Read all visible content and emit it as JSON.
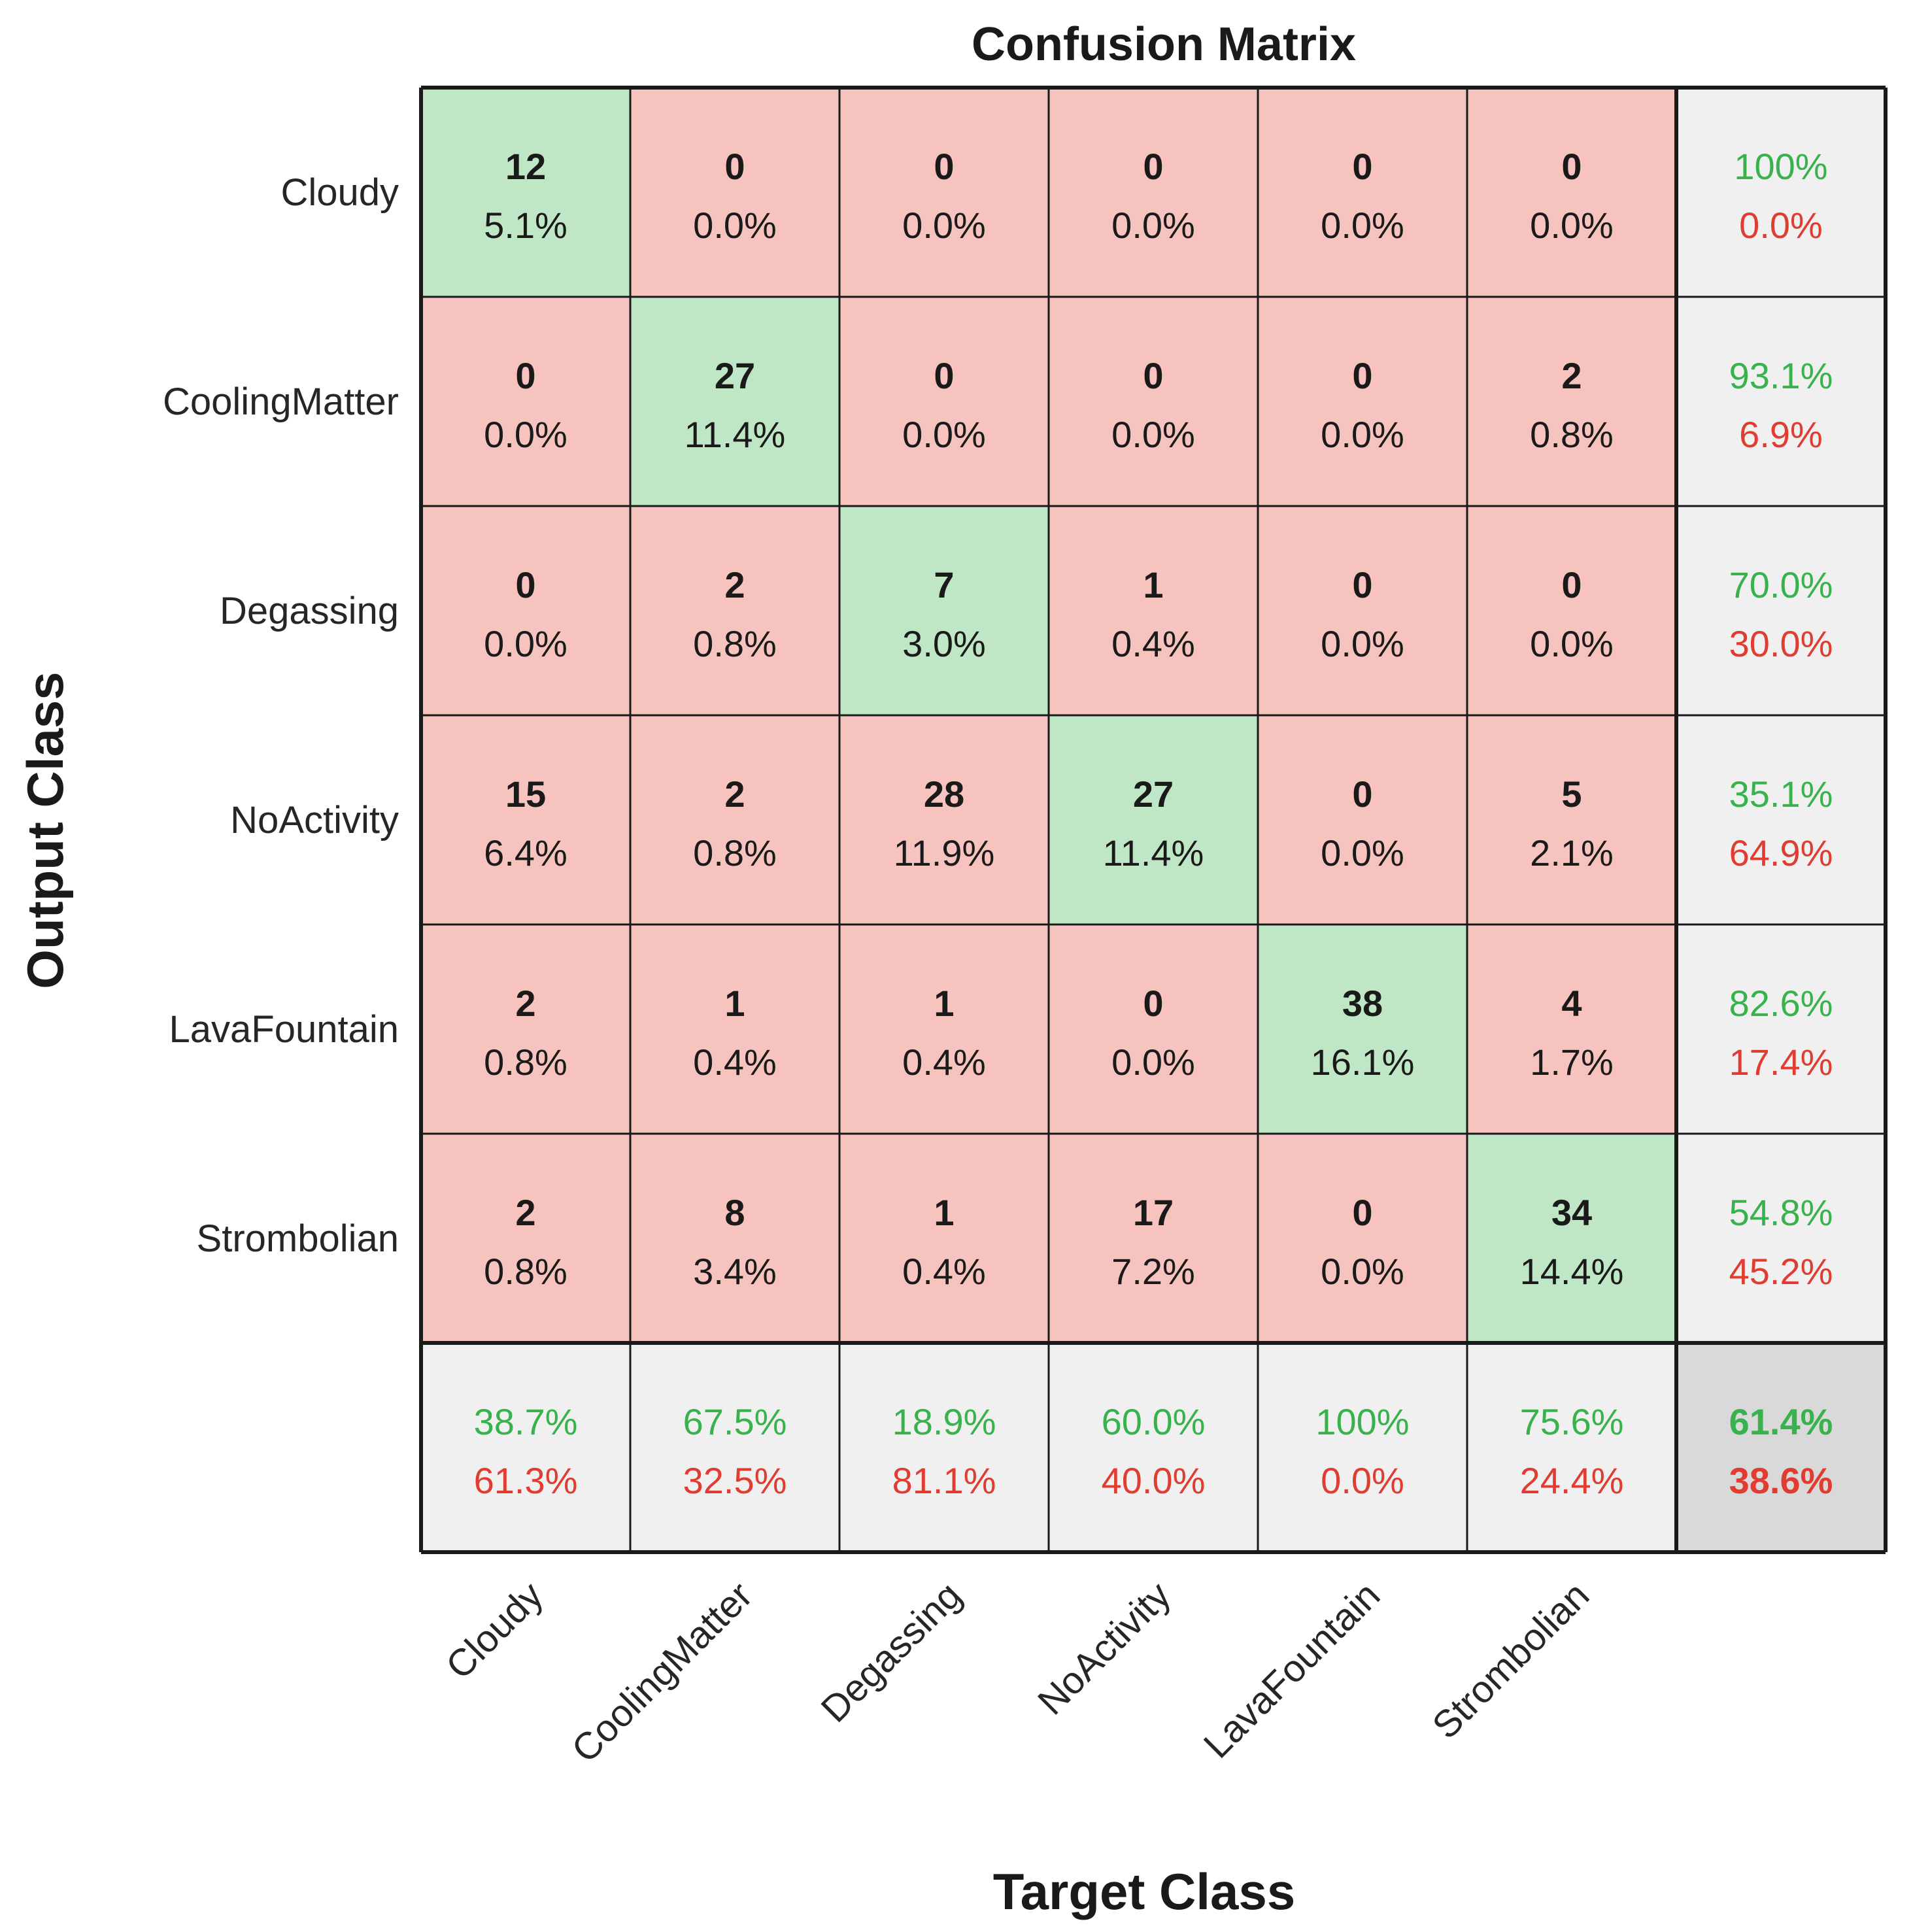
{
  "chart_data": {
    "type": "heatmap",
    "title": "Confusion Matrix",
    "xlabel": "Target Class",
    "ylabel": "Output Class",
    "classes": [
      "Cloudy",
      "CoolingMatter",
      "Degassing",
      "NoActivity",
      "LavaFountain",
      "Strombolian"
    ],
    "counts": [
      [
        12,
        0,
        0,
        0,
        0,
        0
      ],
      [
        0,
        27,
        0,
        0,
        0,
        2
      ],
      [
        0,
        2,
        7,
        1,
        0,
        0
      ],
      [
        15,
        2,
        28,
        27,
        0,
        5
      ],
      [
        2,
        1,
        1,
        0,
        38,
        4
      ],
      [
        2,
        8,
        1,
        17,
        0,
        34
      ]
    ],
    "percents": [
      [
        "5.1%",
        "0.0%",
        "0.0%",
        "0.0%",
        "0.0%",
        "0.0%"
      ],
      [
        "0.0%",
        "11.4%",
        "0.0%",
        "0.0%",
        "0.0%",
        "0.8%"
      ],
      [
        "0.0%",
        "0.8%",
        "3.0%",
        "0.4%",
        "0.0%",
        "0.0%"
      ],
      [
        "6.4%",
        "0.8%",
        "11.9%",
        "11.4%",
        "0.0%",
        "2.1%"
      ],
      [
        "0.8%",
        "0.4%",
        "0.4%",
        "0.0%",
        "16.1%",
        "1.7%"
      ],
      [
        "0.8%",
        "3.4%",
        "0.4%",
        "7.2%",
        "0.0%",
        "14.4%"
      ]
    ],
    "row_summary": [
      {
        "correct": "100%",
        "incorrect": "0.0%"
      },
      {
        "correct": "93.1%",
        "incorrect": "6.9%"
      },
      {
        "correct": "70.0%",
        "incorrect": "30.0%"
      },
      {
        "correct": "35.1%",
        "incorrect": "64.9%"
      },
      {
        "correct": "82.6%",
        "incorrect": "17.4%"
      },
      {
        "correct": "54.8%",
        "incorrect": "45.2%"
      }
    ],
    "col_summary": [
      {
        "correct": "38.7%",
        "incorrect": "61.3%"
      },
      {
        "correct": "67.5%",
        "incorrect": "32.5%"
      },
      {
        "correct": "18.9%",
        "incorrect": "81.1%"
      },
      {
        "correct": "60.0%",
        "incorrect": "40.0%"
      },
      {
        "correct": "100%",
        "incorrect": "0.0%"
      },
      {
        "correct": "75.6%",
        "incorrect": "24.4%"
      }
    ],
    "overall": {
      "correct": "61.4%",
      "incorrect": "38.6%"
    }
  },
  "colors": {
    "diag": "#bfe6c5",
    "off": "#f7c3bf",
    "summary": "#f0f0f0",
    "overall": "#d9d9d9",
    "good": "#37b24d",
    "bad": "#e03c31",
    "line": "#1a1a1a"
  }
}
